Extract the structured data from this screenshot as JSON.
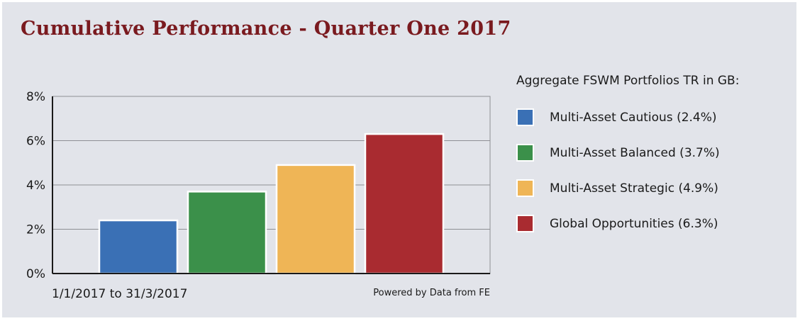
{
  "title": "Cumulative Performance - Quarter One 2017",
  "date_range": "1/1/2017 to 31/3/2017",
  "source": "Powered by Data from FE",
  "legend": {
    "title": "Aggregate FSWM Portfolios TR in GB:",
    "items": [
      {
        "label": "Multi-Asset Cautious (2.4%)",
        "color": "#3a70b5"
      },
      {
        "label": "Multi-Asset Balanced (3.7%)",
        "color": "#3b904a"
      },
      {
        "label": "Multi-Asset Strategic (4.9%)",
        "color": "#efb556"
      },
      {
        "label": "Global Opportunities (6.3%)",
        "color": "#a92b30"
      }
    ]
  },
  "chart_data": {
    "type": "bar",
    "categories": [
      "Multi-Asset Cautious",
      "Multi-Asset Balanced",
      "Multi-Asset Strategic",
      "Global Opportunities"
    ],
    "values": [
      2.4,
      3.7,
      4.9,
      6.3
    ],
    "colors": [
      "#3a70b5",
      "#3b904a",
      "#efb556",
      "#a92b30"
    ],
    "ylim": [
      0,
      8
    ],
    "yticks": [
      0,
      2,
      4,
      6,
      8
    ],
    "ytick_labels": [
      "0%",
      "2%",
      "4%",
      "6%",
      "8%"
    ],
    "grid": true,
    "legend_position": "right"
  }
}
